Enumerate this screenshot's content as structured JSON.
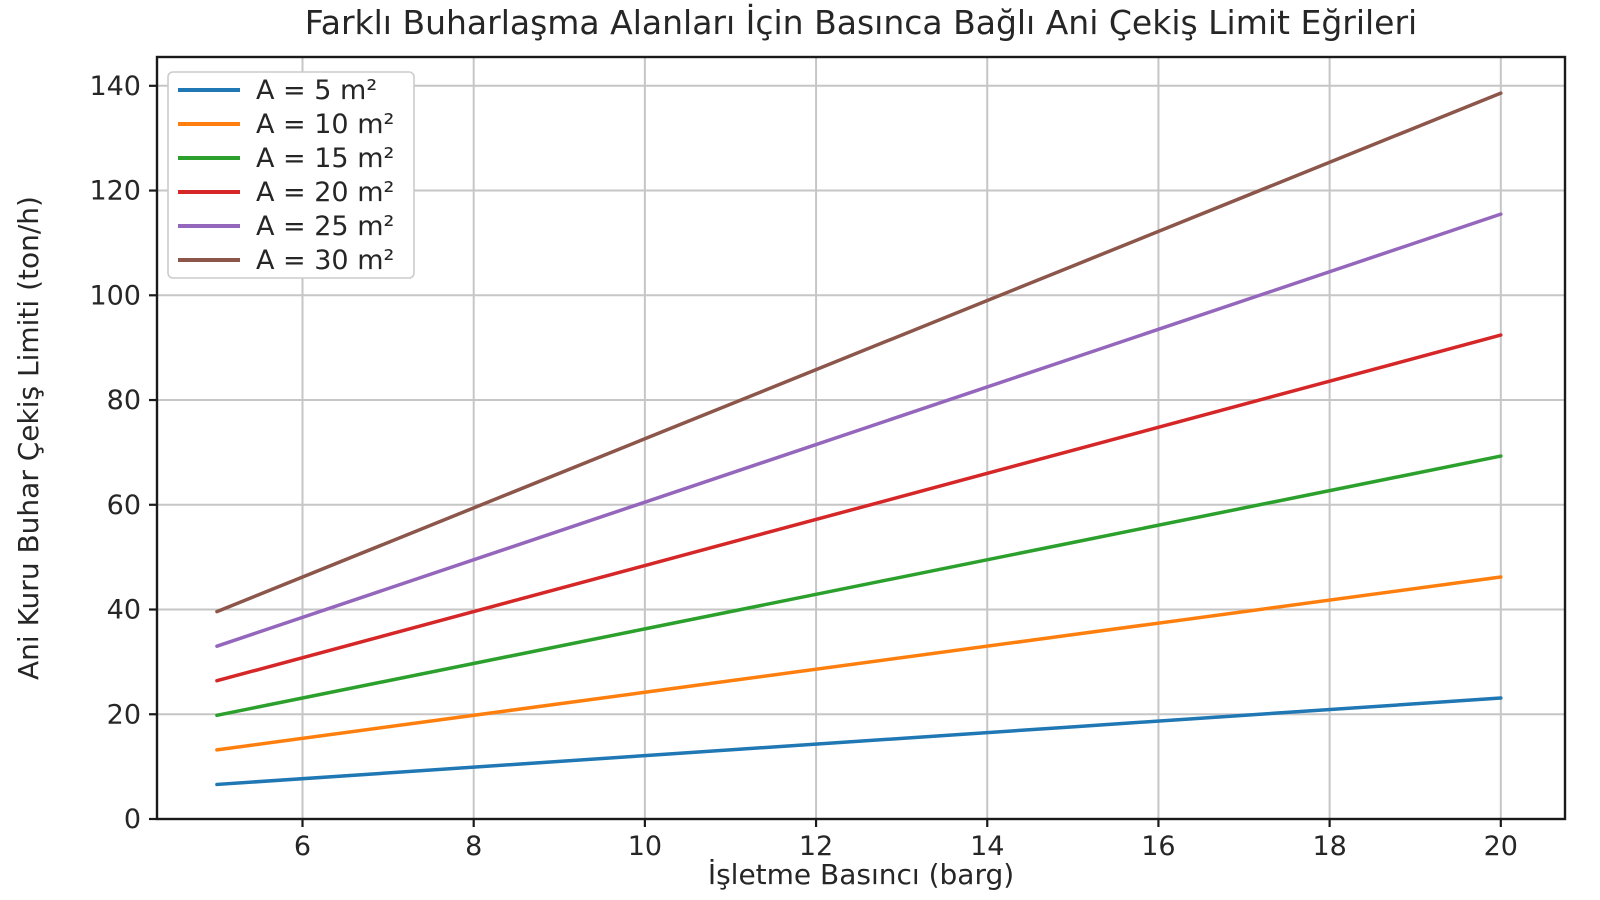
{
  "chart_data": {
    "type": "line",
    "title": "Farklı Buharlaşma Alanları İçin Basınca Bağlı Ani Çekiş Limit Eğrileri",
    "xlabel": "İşletme Basıncı (barg)",
    "ylabel": "Ani Kuru Buhar Çekiş Limiti (ton/h)",
    "x": [
      5,
      10,
      15,
      20
    ],
    "series": [
      {
        "name": "A = 5 m²",
        "color": "#1f77b4",
        "values": [
          6.6,
          12.1,
          17.6,
          23.1
        ]
      },
      {
        "name": "A = 10 m²",
        "color": "#ff7f0e",
        "values": [
          13.2,
          24.2,
          35.2,
          46.2
        ]
      },
      {
        "name": "A = 15 m²",
        "color": "#2ca02c",
        "values": [
          19.8,
          36.3,
          52.8,
          69.3
        ]
      },
      {
        "name": "A = 20 m²",
        "color": "#d62728",
        "values": [
          26.4,
          48.4,
          70.4,
          92.4
        ]
      },
      {
        "name": "A = 25 m²",
        "color": "#9467bd",
        "values": [
          33.0,
          60.5,
          88.0,
          115.5
        ]
      },
      {
        "name": "A = 30 m²",
        "color": "#8c564b",
        "values": [
          39.6,
          72.6,
          105.6,
          138.6
        ]
      }
    ],
    "x_ticks": [
      6,
      8,
      10,
      12,
      14,
      16,
      18,
      20
    ],
    "y_ticks": [
      0,
      20,
      40,
      60,
      80,
      100,
      120,
      140
    ],
    "xlim": [
      4.3,
      20.75
    ],
    "ylim": [
      0,
      145.5
    ],
    "grid": true,
    "legend_position": "upper left",
    "colors": {
      "background": "#ffffff",
      "grid": "#c6c6c6",
      "spine": "#1a1a1a",
      "text": "#262626",
      "legend_border": "#cccccc",
      "legend_background": "#ffffff"
    }
  }
}
